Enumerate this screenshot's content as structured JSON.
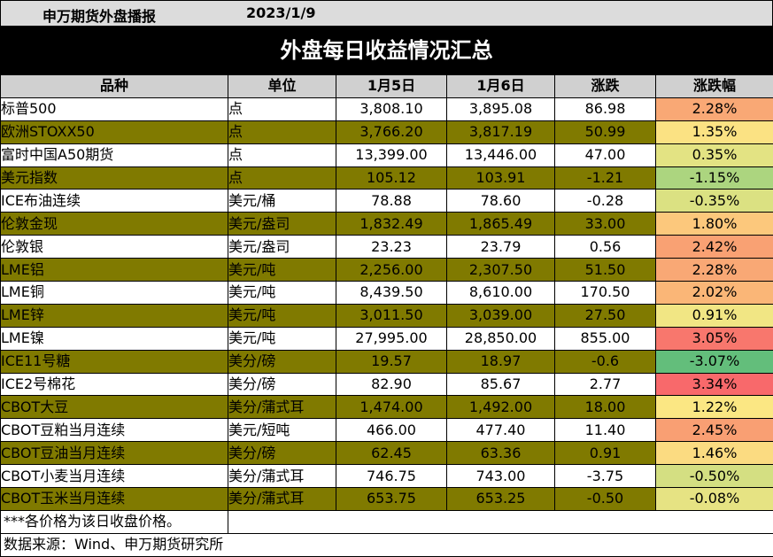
{
  "brand": "申万期货外盘播报",
  "date": "2023/1/9",
  "title": "外盘每日收益情况汇总",
  "headers": [
    "品种",
    "单位",
    "1月5日",
    "1月6日",
    "涨跌",
    "涨跌幅"
  ],
  "rows": [
    {
      "name": "标普500",
      "unit": "点",
      "d1": "3,808.10",
      "d2": "3,895.08",
      "chg": "86.98",
      "pct": "2.28%",
      "pct_color": "#f9a875"
    },
    {
      "name": "欧洲STOXX50",
      "unit": "点",
      "d1": "3,766.20",
      "d2": "3,817.19",
      "chg": "50.99",
      "pct": "1.35%",
      "pct_color": "#fbe283"
    },
    {
      "name": "富时中国A50期货",
      "unit": "点",
      "d1": "13,399.00",
      "d2": "13,446.00",
      "chg": "47.00",
      "pct": "0.35%",
      "pct_color": "#e3e383"
    },
    {
      "name": "美元指数",
      "unit": "点",
      "d1": "105.12",
      "d2": "103.91",
      "chg": "-1.21",
      "pct": "-1.15%",
      "pct_color": "#acd57f"
    },
    {
      "name": "ICE布油连续",
      "unit": "美元/桶",
      "d1": "78.88",
      "d2": "78.60",
      "chg": "-0.28",
      "pct": "-0.35%",
      "pct_color": "#dbe182"
    },
    {
      "name": "伦敦金现",
      "unit": "美元/盎司",
      "d1": "1,832.49",
      "d2": "1,865.49",
      "chg": "33.00",
      "pct": "1.80%",
      "pct_color": "#fcc87c"
    },
    {
      "name": "伦敦银",
      "unit": "美元/盎司",
      "d1": "23.23",
      "d2": "23.79",
      "chg": "0.56",
      "pct": "2.42%",
      "pct_color": "#f9a173"
    },
    {
      "name": "LME铝",
      "unit": "美元/吨",
      "d1": "2,256.00",
      "d2": "2,307.50",
      "chg": "51.50",
      "pct": "2.28%",
      "pct_color": "#f9a875"
    },
    {
      "name": "LME铜",
      "unit": "美元/吨",
      "d1": "8,439.50",
      "d2": "8,610.00",
      "chg": "170.50",
      "pct": "2.02%",
      "pct_color": "#fab677"
    },
    {
      "name": "LME锌",
      "unit": "美元/吨",
      "d1": "3,011.50",
      "d2": "3,039.00",
      "chg": "27.50",
      "pct": "0.91%",
      "pct_color": "#f1e684"
    },
    {
      "name": "LME镍",
      "unit": "美元/吨",
      "d1": "27,995.00",
      "d2": "28,850.00",
      "chg": "855.00",
      "pct": "3.05%",
      "pct_color": "#f8776d"
    },
    {
      "name": "ICE11号糖",
      "unit": "美分/磅",
      "d1": "19.57",
      "d2": "18.97",
      "chg": "-0.6",
      "pct": "-3.07%",
      "pct_color": "#63be7b"
    },
    {
      "name": "ICE2号棉花",
      "unit": "美分/磅",
      "d1": "82.90",
      "d2": "85.67",
      "chg": "2.77",
      "pct": "3.34%",
      "pct_color": "#f8696b"
    },
    {
      "name": "CBOT大豆",
      "unit": "美分/蒲式耳",
      "d1": "1,474.00",
      "d2": "1,492.00",
      "chg": "18.00",
      "pct": "1.22%",
      "pct_color": "#fbe783"
    },
    {
      "name": "CBOT豆粕当月连续",
      "unit": "美元/短吨",
      "d1": "466.00",
      "d2": "477.40",
      "chg": "11.40",
      "pct": "2.45%",
      "pct_color": "#f99f73"
    },
    {
      "name": "CBOT豆油当月连续",
      "unit": "美分/磅",
      "d1": "62.45",
      "d2": "63.36",
      "chg": "0.91",
      "pct": "1.46%",
      "pct_color": "#fbdb81"
    },
    {
      "name": "CBOT小麦当月连续",
      "unit": "美分/蒲式耳",
      "d1": "746.75",
      "d2": "743.00",
      "chg": "-3.75",
      "pct": "-0.50%",
      "pct_color": "#d4df82"
    },
    {
      "name": "CBOT玉米当月连续",
      "unit": "美分/蒲式耳",
      "d1": "653.75",
      "d2": "653.25",
      "chg": "-0.50",
      "pct": "-0.08%",
      "pct_color": "#e6e383"
    }
  ],
  "note": "***各价格为该日收盘价格。",
  "source": "数据来源：Wind、申万期货研究所"
}
